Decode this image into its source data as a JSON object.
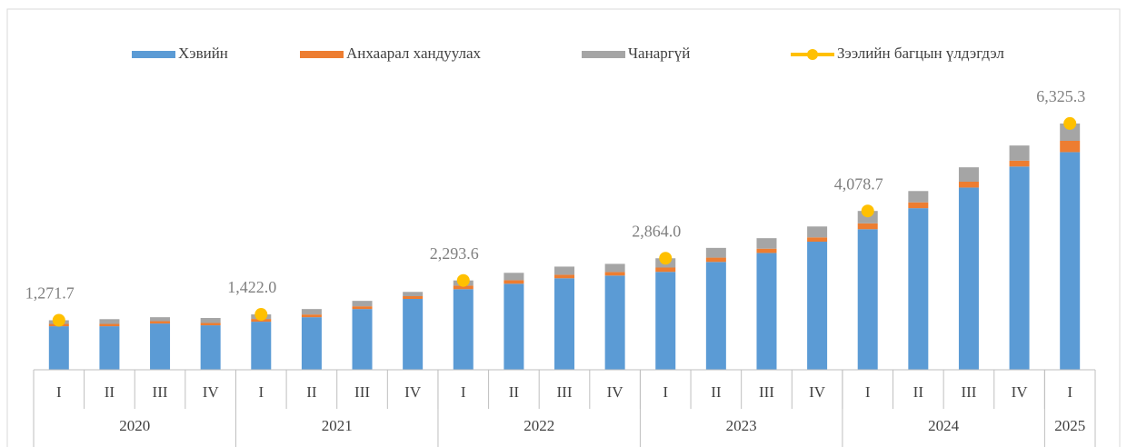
{
  "chart_data": {
    "type": "bar",
    "stacked": true,
    "categories": [
      "I",
      "II",
      "III",
      "IV",
      "I",
      "II",
      "III",
      "IV",
      "I",
      "II",
      "III",
      "IV",
      "I",
      "II",
      "III",
      "IV",
      "I",
      "II",
      "III",
      "IV",
      "I"
    ],
    "groups": [
      {
        "name": "2020",
        "count": 4
      },
      {
        "name": "2021",
        "count": 4
      },
      {
        "name": "2022",
        "count": 4
      },
      {
        "name": "2023",
        "count": 4
      },
      {
        "name": "2024",
        "count": 4
      },
      {
        "name": "2025",
        "count": 1
      }
    ],
    "ylim": [
      0,
      7000
    ],
    "series": [
      {
        "name": "Хэвийн",
        "type": "bar",
        "color": "#5b9bd5",
        "values": [
          1118,
          1118,
          1188,
          1142,
          1235,
          1350,
          1560,
          1820,
          2070,
          2210,
          2350,
          2420,
          2515,
          2770,
          3000,
          3290,
          3610,
          4150,
          4680,
          5220,
          5590
        ]
      },
      {
        "name": "Анхаарал хандуулах",
        "type": "bar",
        "color": "#ed7d31",
        "values": [
          60,
          60,
          60,
          60,
          70,
          70,
          70,
          70,
          90,
          90,
          90,
          90,
          110,
          110,
          110,
          110,
          150,
          150,
          150,
          150,
          290
        ]
      },
      {
        "name": "Чанаргүй",
        "type": "bar",
        "color": "#a5a5a5",
        "values": [
          94,
          122,
          102,
          128,
          117,
          140,
          140,
          110,
          134,
          190,
          210,
          210,
          239,
          250,
          270,
          280,
          319,
          290,
          370,
          390,
          445
        ]
      },
      {
        "name": "Зээлийн багцын үлдэгдэл",
        "type": "line",
        "color": "#ffc000",
        "values": [
          1271.7,
          null,
          null,
          null,
          1422.0,
          null,
          null,
          null,
          2293.6,
          null,
          null,
          null,
          2864.0,
          null,
          null,
          null,
          4078.7,
          null,
          null,
          null,
          6325.3
        ],
        "value_labels": [
          "1,271.7",
          null,
          null,
          null,
          "1,422.0",
          null,
          null,
          null,
          "2,293.6",
          null,
          null,
          null,
          "2,864.0",
          null,
          null,
          null,
          "4,078.7",
          null,
          null,
          null,
          "6,325.3"
        ]
      }
    ],
    "legend": "top"
  }
}
